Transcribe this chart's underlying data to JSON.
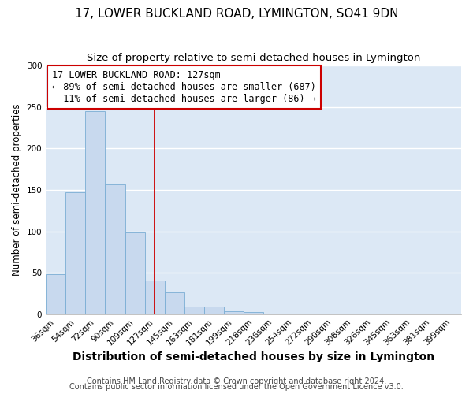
{
  "title": "17, LOWER BUCKLAND ROAD, LYMINGTON, SO41 9DN",
  "subtitle": "Size of property relative to semi-detached houses in Lymington",
  "xlabel": "Distribution of semi-detached houses by size in Lymington",
  "ylabel": "Number of semi-detached properties",
  "bar_color": "#c8d9ee",
  "bar_edge_color": "#7aadd4",
  "bin_labels": [
    "36sqm",
    "54sqm",
    "72sqm",
    "90sqm",
    "109sqm",
    "127sqm",
    "145sqm",
    "163sqm",
    "181sqm",
    "199sqm",
    "218sqm",
    "236sqm",
    "254sqm",
    "272sqm",
    "290sqm",
    "308sqm",
    "326sqm",
    "345sqm",
    "363sqm",
    "381sqm",
    "399sqm"
  ],
  "bar_values": [
    48,
    147,
    245,
    157,
    99,
    41,
    26,
    9,
    9,
    4,
    3,
    1,
    0,
    0,
    0,
    0,
    0,
    0,
    0,
    0,
    1
  ],
  "vline_index": 5,
  "vline_color": "#cc0000",
  "annotation_line1": "17 LOWER BUCKLAND ROAD: 127sqm",
  "annotation_line2": "← 89% of semi-detached houses are smaller (687)",
  "annotation_line3": "  11% of semi-detached houses are larger (86) →",
  "annotation_box_color": "#cc0000",
  "annotation_box_facecolor": "white",
  "ylim": [
    0,
    300
  ],
  "yticks": [
    0,
    50,
    100,
    150,
    200,
    250,
    300
  ],
  "footer1": "Contains HM Land Registry data © Crown copyright and database right 2024.",
  "footer2": "Contains public sector information licensed under the Open Government Licence v3.0.",
  "background_color": "#dce8f5",
  "grid_color": "white",
  "title_fontsize": 11,
  "subtitle_fontsize": 9.5,
  "xlabel_fontsize": 10,
  "ylabel_fontsize": 8.5,
  "tick_fontsize": 7.5,
  "footer_fontsize": 7,
  "annotation_fontsize": 8.5
}
